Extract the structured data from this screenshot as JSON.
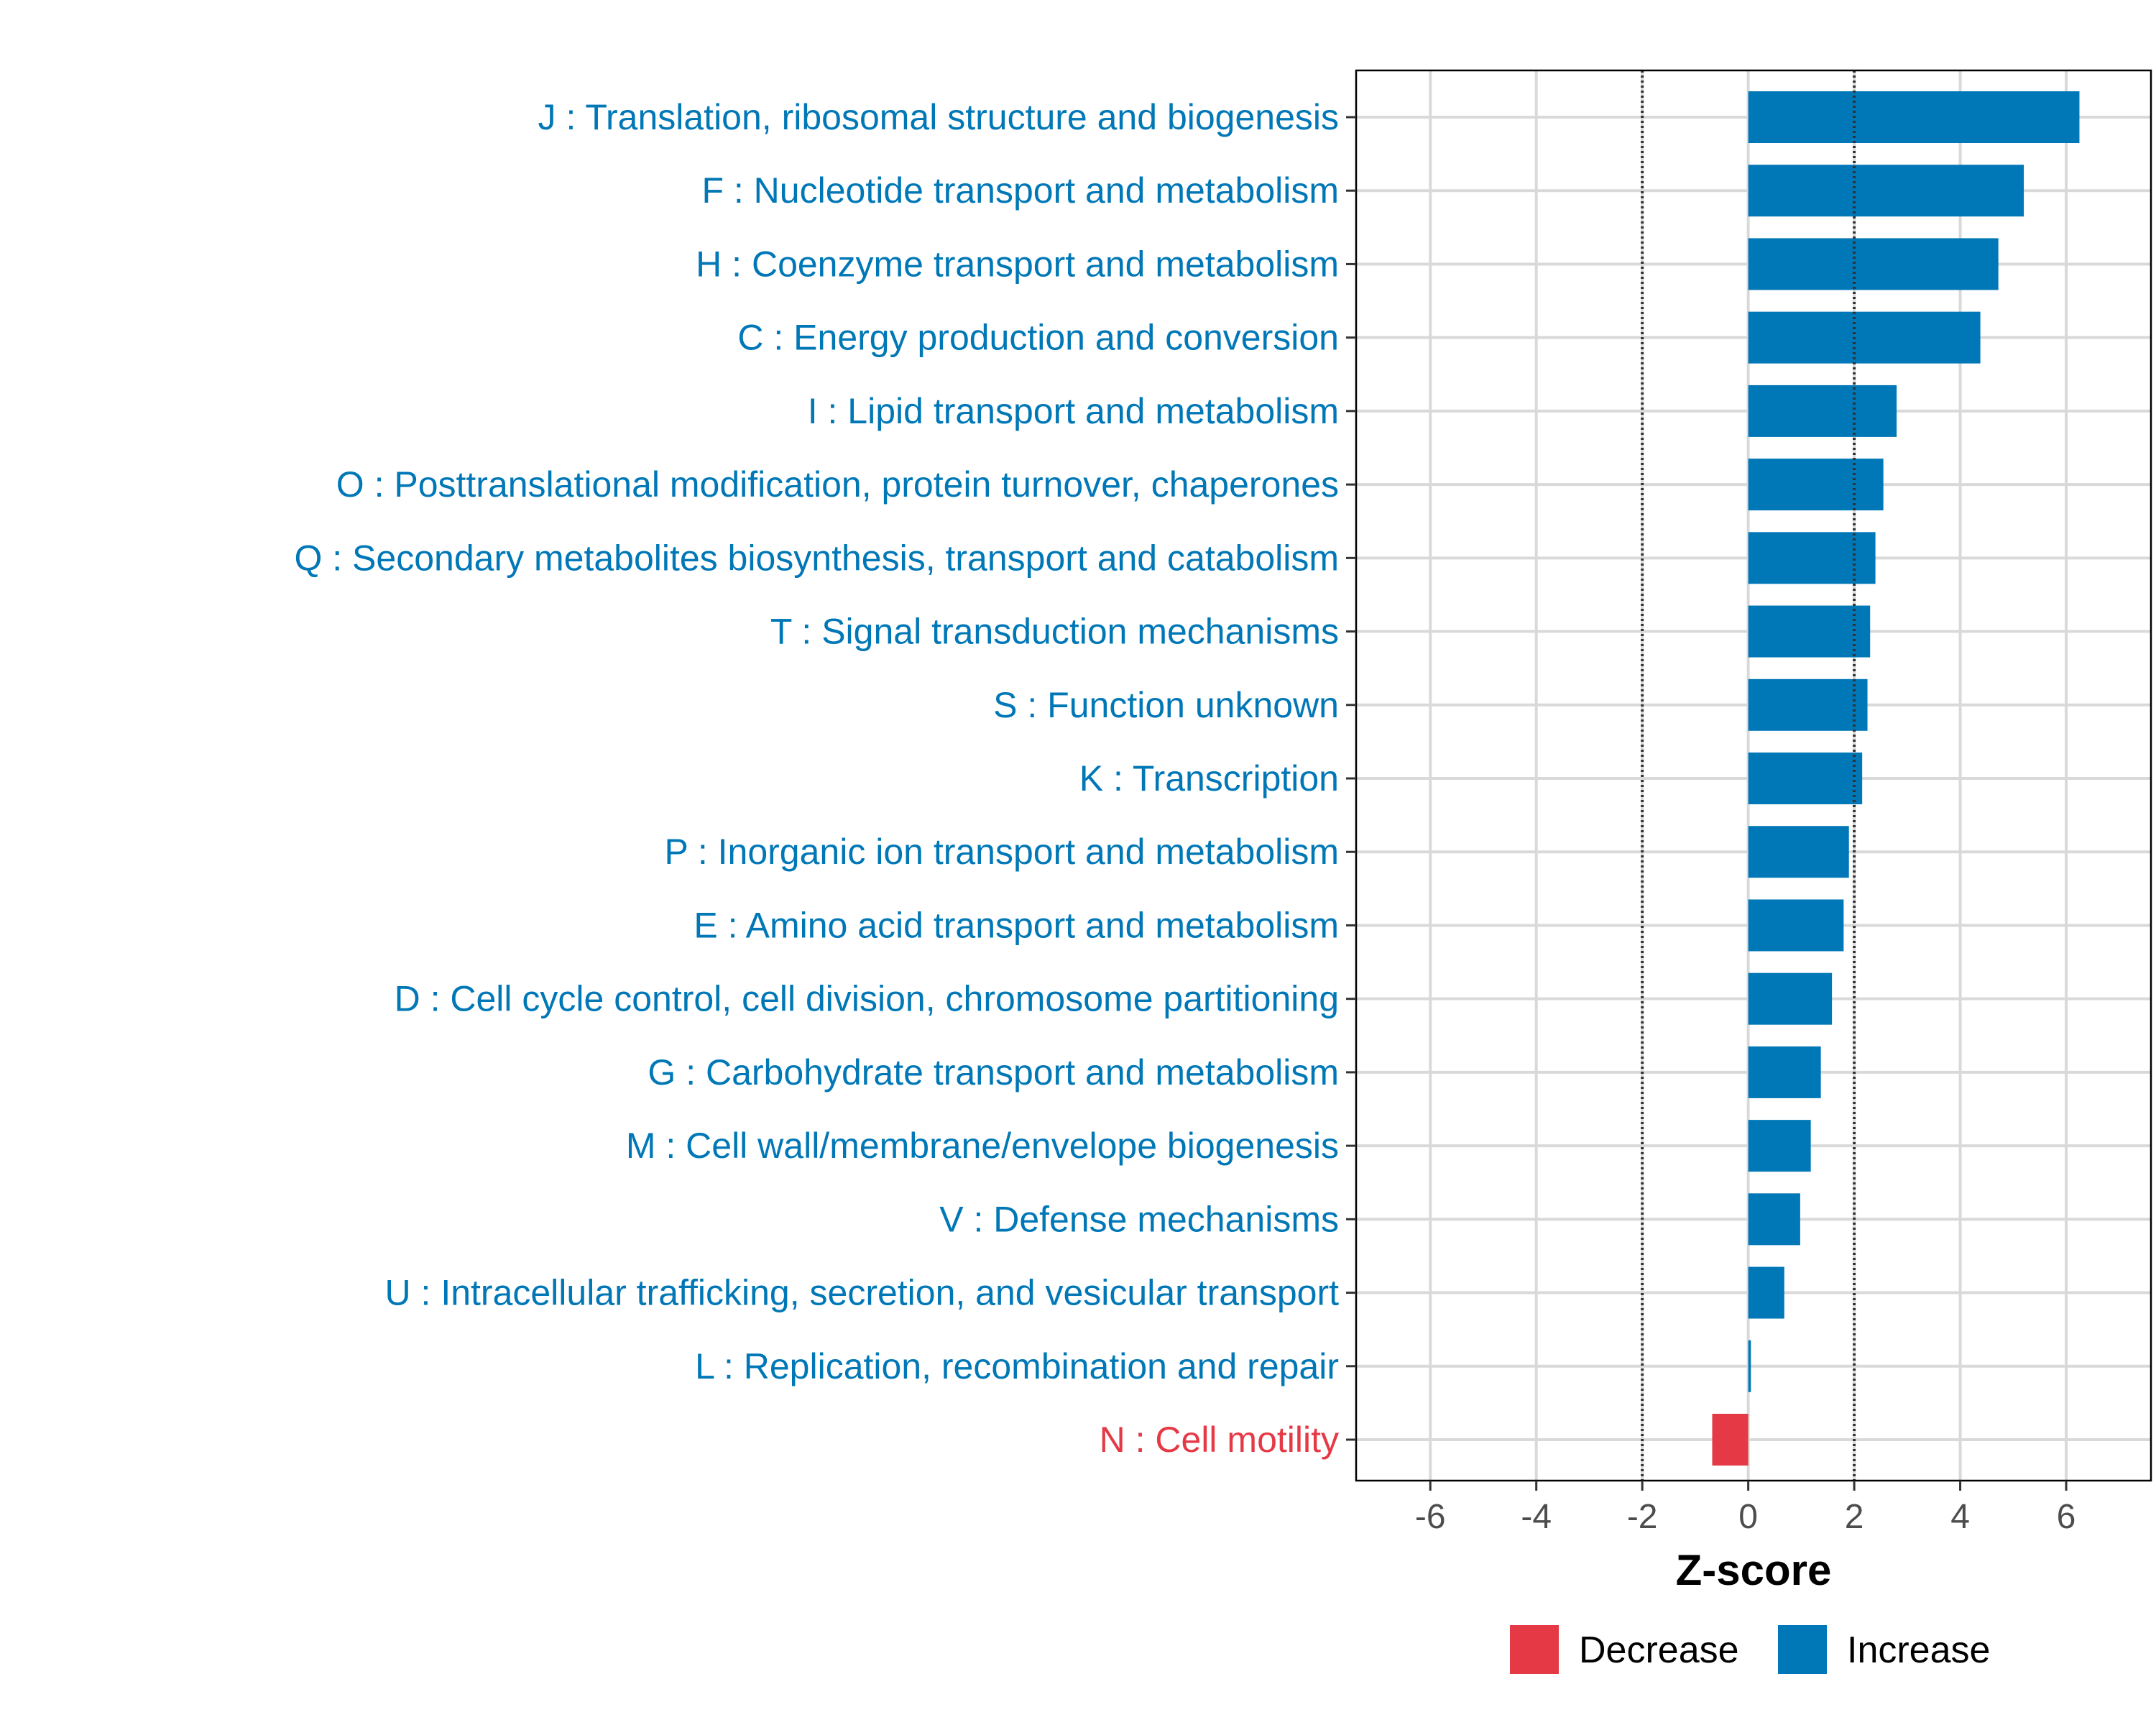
{
  "chart_data": {
    "type": "bar",
    "orientation": "horizontal",
    "xlabel": "Z-score",
    "ylabel": "",
    "xlim": [
      -7.4,
      7.6
    ],
    "xticks": [
      -6,
      -4,
      -2,
      0,
      2,
      4,
      6
    ],
    "xtick_labels": [
      "-6",
      "-4",
      "-2",
      "0",
      "2",
      "4",
      "6"
    ],
    "reference_lines": [
      -2,
      2
    ],
    "grid": true,
    "legend_position": "bottom",
    "legend": [
      {
        "name": "Decrease",
        "color": "#E63946"
      },
      {
        "name": "Increase",
        "color": "#0077B6"
      }
    ],
    "categories": [
      "J : Translation, ribosomal structure and biogenesis",
      "F : Nucleotide transport and metabolism",
      "H : Coenzyme transport and metabolism",
      "C : Energy production and conversion",
      "I : Lipid transport and metabolism",
      "O : Posttranslational modification, protein turnover, chaperones",
      "Q : Secondary metabolites biosynthesis, transport and catabolism",
      "T : Signal transduction mechanisms",
      "S : Function unknown",
      "K : Transcription",
      "P : Inorganic ion transport and metabolism",
      "E : Amino acid transport and metabolism",
      "D : Cell cycle control, cell division, chromosome partitioning",
      "G : Carbohydrate transport and metabolism",
      "M : Cell wall/membrane/envelope biogenesis",
      "V : Defense mechanisms",
      "U : Intracellular trafficking, secretion, and vesicular transport",
      "L : Replication, recombination and repair",
      "N : Cell motility"
    ],
    "values": [
      6.25,
      5.2,
      4.72,
      4.38,
      2.8,
      2.55,
      2.4,
      2.3,
      2.25,
      2.15,
      1.9,
      1.8,
      1.58,
      1.37,
      1.18,
      0.98,
      0.68,
      0.05,
      -0.68
    ],
    "directions": [
      "Increase",
      "Increase",
      "Increase",
      "Increase",
      "Increase",
      "Increase",
      "Increase",
      "Increase",
      "Increase",
      "Increase",
      "Increase",
      "Increase",
      "Increase",
      "Increase",
      "Increase",
      "Increase",
      "Increase",
      "Increase",
      "Decrease"
    ]
  }
}
